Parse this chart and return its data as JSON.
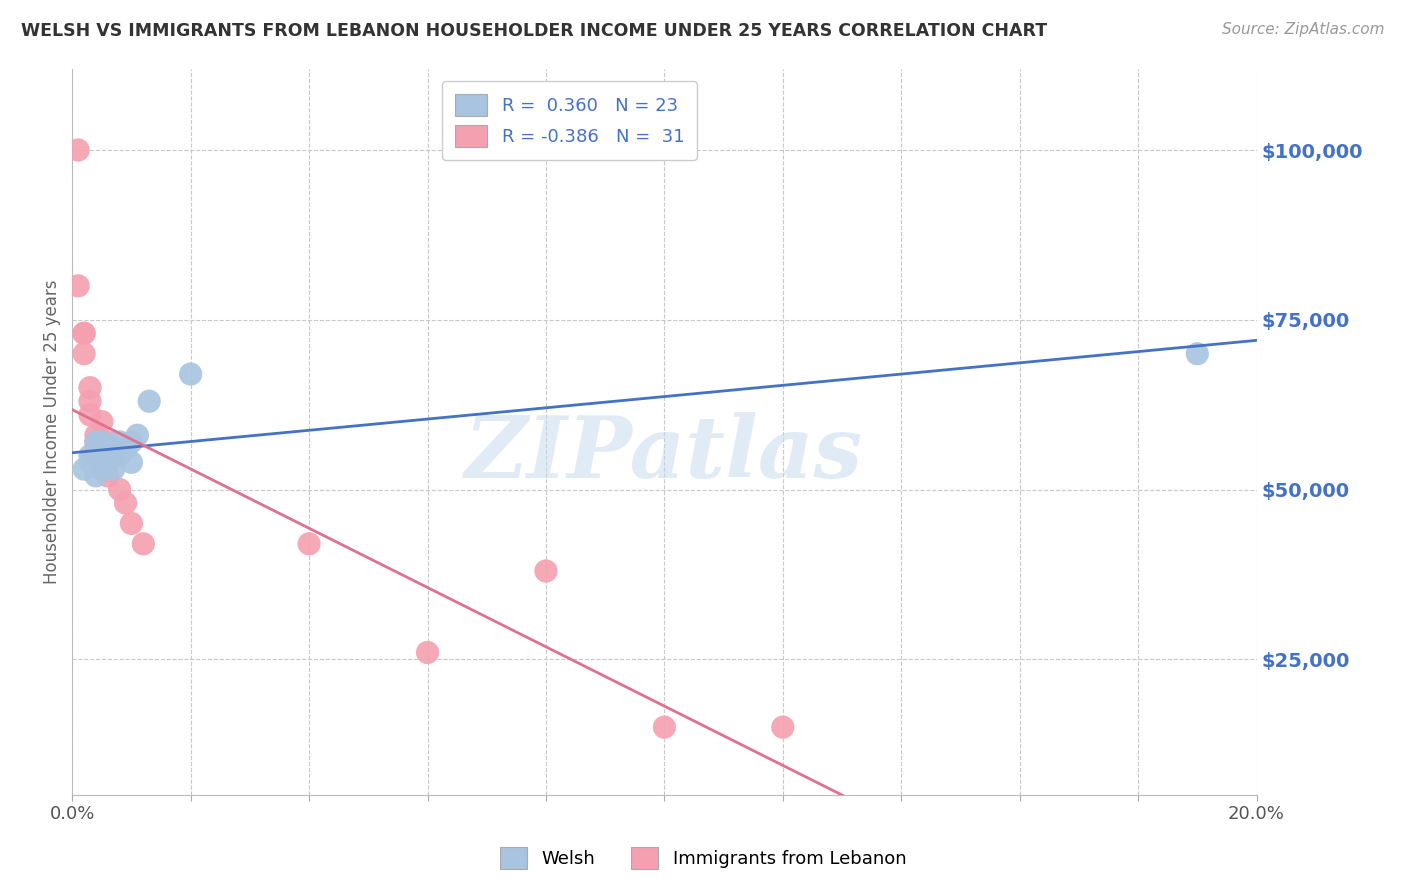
{
  "title": "WELSH VS IMMIGRANTS FROM LEBANON HOUSEHOLDER INCOME UNDER 25 YEARS CORRELATION CHART",
  "source": "Source: ZipAtlas.com",
  "ylabel": "Householder Income Under 25 years",
  "xlim": [
    0.0,
    0.2
  ],
  "ylim": [
    5000,
    112000
  ],
  "welsh_R": 0.36,
  "welsh_N": 23,
  "lebanon_R": -0.386,
  "lebanon_N": 31,
  "welsh_color": "#a8c4e0",
  "lebanon_color": "#f4a0b0",
  "welsh_line_color": "#4472c4",
  "lebanon_line_color": "#e07090",
  "legend_text_color": "#4472c4",
  "watermark": "ZIPatlas",
  "background_color": "#ffffff",
  "grid_color": "#c8c8c8",
  "ylabel_vals": [
    25000,
    50000,
    75000,
    100000
  ],
  "ylabel_ticks": [
    "$25,000",
    "$50,000",
    "$75,000",
    "$100,000"
  ],
  "welsh_x": [
    0.002,
    0.003,
    0.003,
    0.004,
    0.004,
    0.004,
    0.005,
    0.005,
    0.005,
    0.005,
    0.006,
    0.006,
    0.007,
    0.007,
    0.008,
    0.008,
    0.009,
    0.01,
    0.01,
    0.011,
    0.013,
    0.02,
    0.19
  ],
  "welsh_y": [
    53000,
    54000,
    55000,
    52000,
    55000,
    57000,
    53000,
    55000,
    56000,
    57000,
    54000,
    56000,
    53000,
    56000,
    55000,
    57000,
    56000,
    54000,
    57000,
    58000,
    63000,
    67000,
    70000
  ],
  "lebanon_x": [
    0.001,
    0.001,
    0.002,
    0.002,
    0.002,
    0.003,
    0.003,
    0.003,
    0.004,
    0.004,
    0.004,
    0.004,
    0.005,
    0.005,
    0.005,
    0.005,
    0.005,
    0.006,
    0.006,
    0.006,
    0.006,
    0.007,
    0.008,
    0.009,
    0.01,
    0.012,
    0.04,
    0.06,
    0.08,
    0.1,
    0.12
  ],
  "lebanon_y": [
    100000,
    80000,
    73000,
    73000,
    70000,
    65000,
    63000,
    61000,
    58000,
    57000,
    56000,
    55000,
    60000,
    57000,
    55000,
    54000,
    53000,
    57000,
    55000,
    54000,
    52000,
    55000,
    50000,
    48000,
    45000,
    42000,
    42000,
    26000,
    38000,
    15000,
    15000
  ]
}
